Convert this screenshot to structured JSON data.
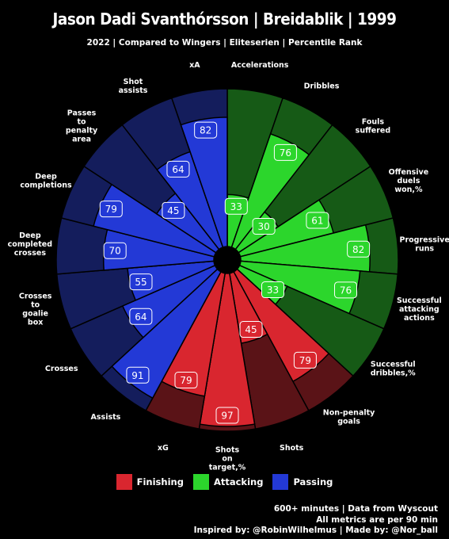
{
  "title": "Jason Dadi Svanthórsson | Breidablik | 1999",
  "subtitle": "2022 | Compared to Wingers | Eliteserien | Percentile Rank",
  "legend": {
    "finishing": "Finishing",
    "attacking": "Attacking",
    "passing": "Passing"
  },
  "footer": {
    "line1": "600+ minutes | Data from Wyscout",
    "line2": "All metrics are per 90 min",
    "line3": "Inspired by: @RobinWilhelmus | Made by: @Nor_ball"
  },
  "colors": {
    "Attacking": {
      "bar": "#2cd62c",
      "bg": "#165a16"
    },
    "Finishing": {
      "bar": "#d9262f",
      "bg": "#5a1317"
    },
    "Passing": {
      "bar": "#2339d6",
      "bg": "#141d5c"
    }
  },
  "chart_data": {
    "type": "polar-bar",
    "title": "Jason Dadi Svanthórsson | Breidablik | 1999",
    "subtitle": "2022 | Compared to Wingers | Eliteserien | Percentile Rank",
    "range": [
      0,
      100
    ],
    "series": [
      {
        "name": "Finishing",
        "color": "#d9262f"
      },
      {
        "name": "Attacking",
        "color": "#2cd62c"
      },
      {
        "name": "Passing",
        "color": "#2339d6"
      }
    ],
    "metrics": [
      {
        "label": "Accelerations",
        "group": "Attacking",
        "value": 33
      },
      {
        "label": "Dribbles",
        "group": "Attacking",
        "value": 76
      },
      {
        "label": "Fouls\nsuffered",
        "group": "Attacking",
        "value": 30
      },
      {
        "label": "Offensive\nduels\nwon,%",
        "group": "Attacking",
        "value": 61
      },
      {
        "label": "Progressive\nruns",
        "group": "Attacking",
        "value": 82
      },
      {
        "label": "Successful\nattacking\nactions",
        "group": "Attacking",
        "value": 76
      },
      {
        "label": "Successful\ndribbles,%",
        "group": "Attacking",
        "value": 33
      },
      {
        "label": "Non-penalty\ngoals",
        "group": "Finishing",
        "value": 79
      },
      {
        "label": "Shots",
        "group": "Finishing",
        "value": 45
      },
      {
        "label": "Shots\non\ntarget,%",
        "group": "Finishing",
        "value": 97
      },
      {
        "label": "xG",
        "group": "Finishing",
        "value": 79
      },
      {
        "label": "Assists",
        "group": "Passing",
        "value": 91
      },
      {
        "label": "Crosses",
        "group": "Passing",
        "value": 64
      },
      {
        "label": "Crosses\nto\ngoalie\nbox",
        "group": "Passing",
        "value": 55
      },
      {
        "label": "Deep\ncompleted\ncrosses",
        "group": "Passing",
        "value": 70
      },
      {
        "label": "Deep\ncompletions",
        "group": "Passing",
        "value": 79
      },
      {
        "label": "Passes\nto\npenalty\narea",
        "group": "Passing",
        "value": 45
      },
      {
        "label": "Shot\nassists",
        "group": "Passing",
        "value": 64
      },
      {
        "label": "xA",
        "group": "Passing",
        "value": 82
      }
    ]
  }
}
